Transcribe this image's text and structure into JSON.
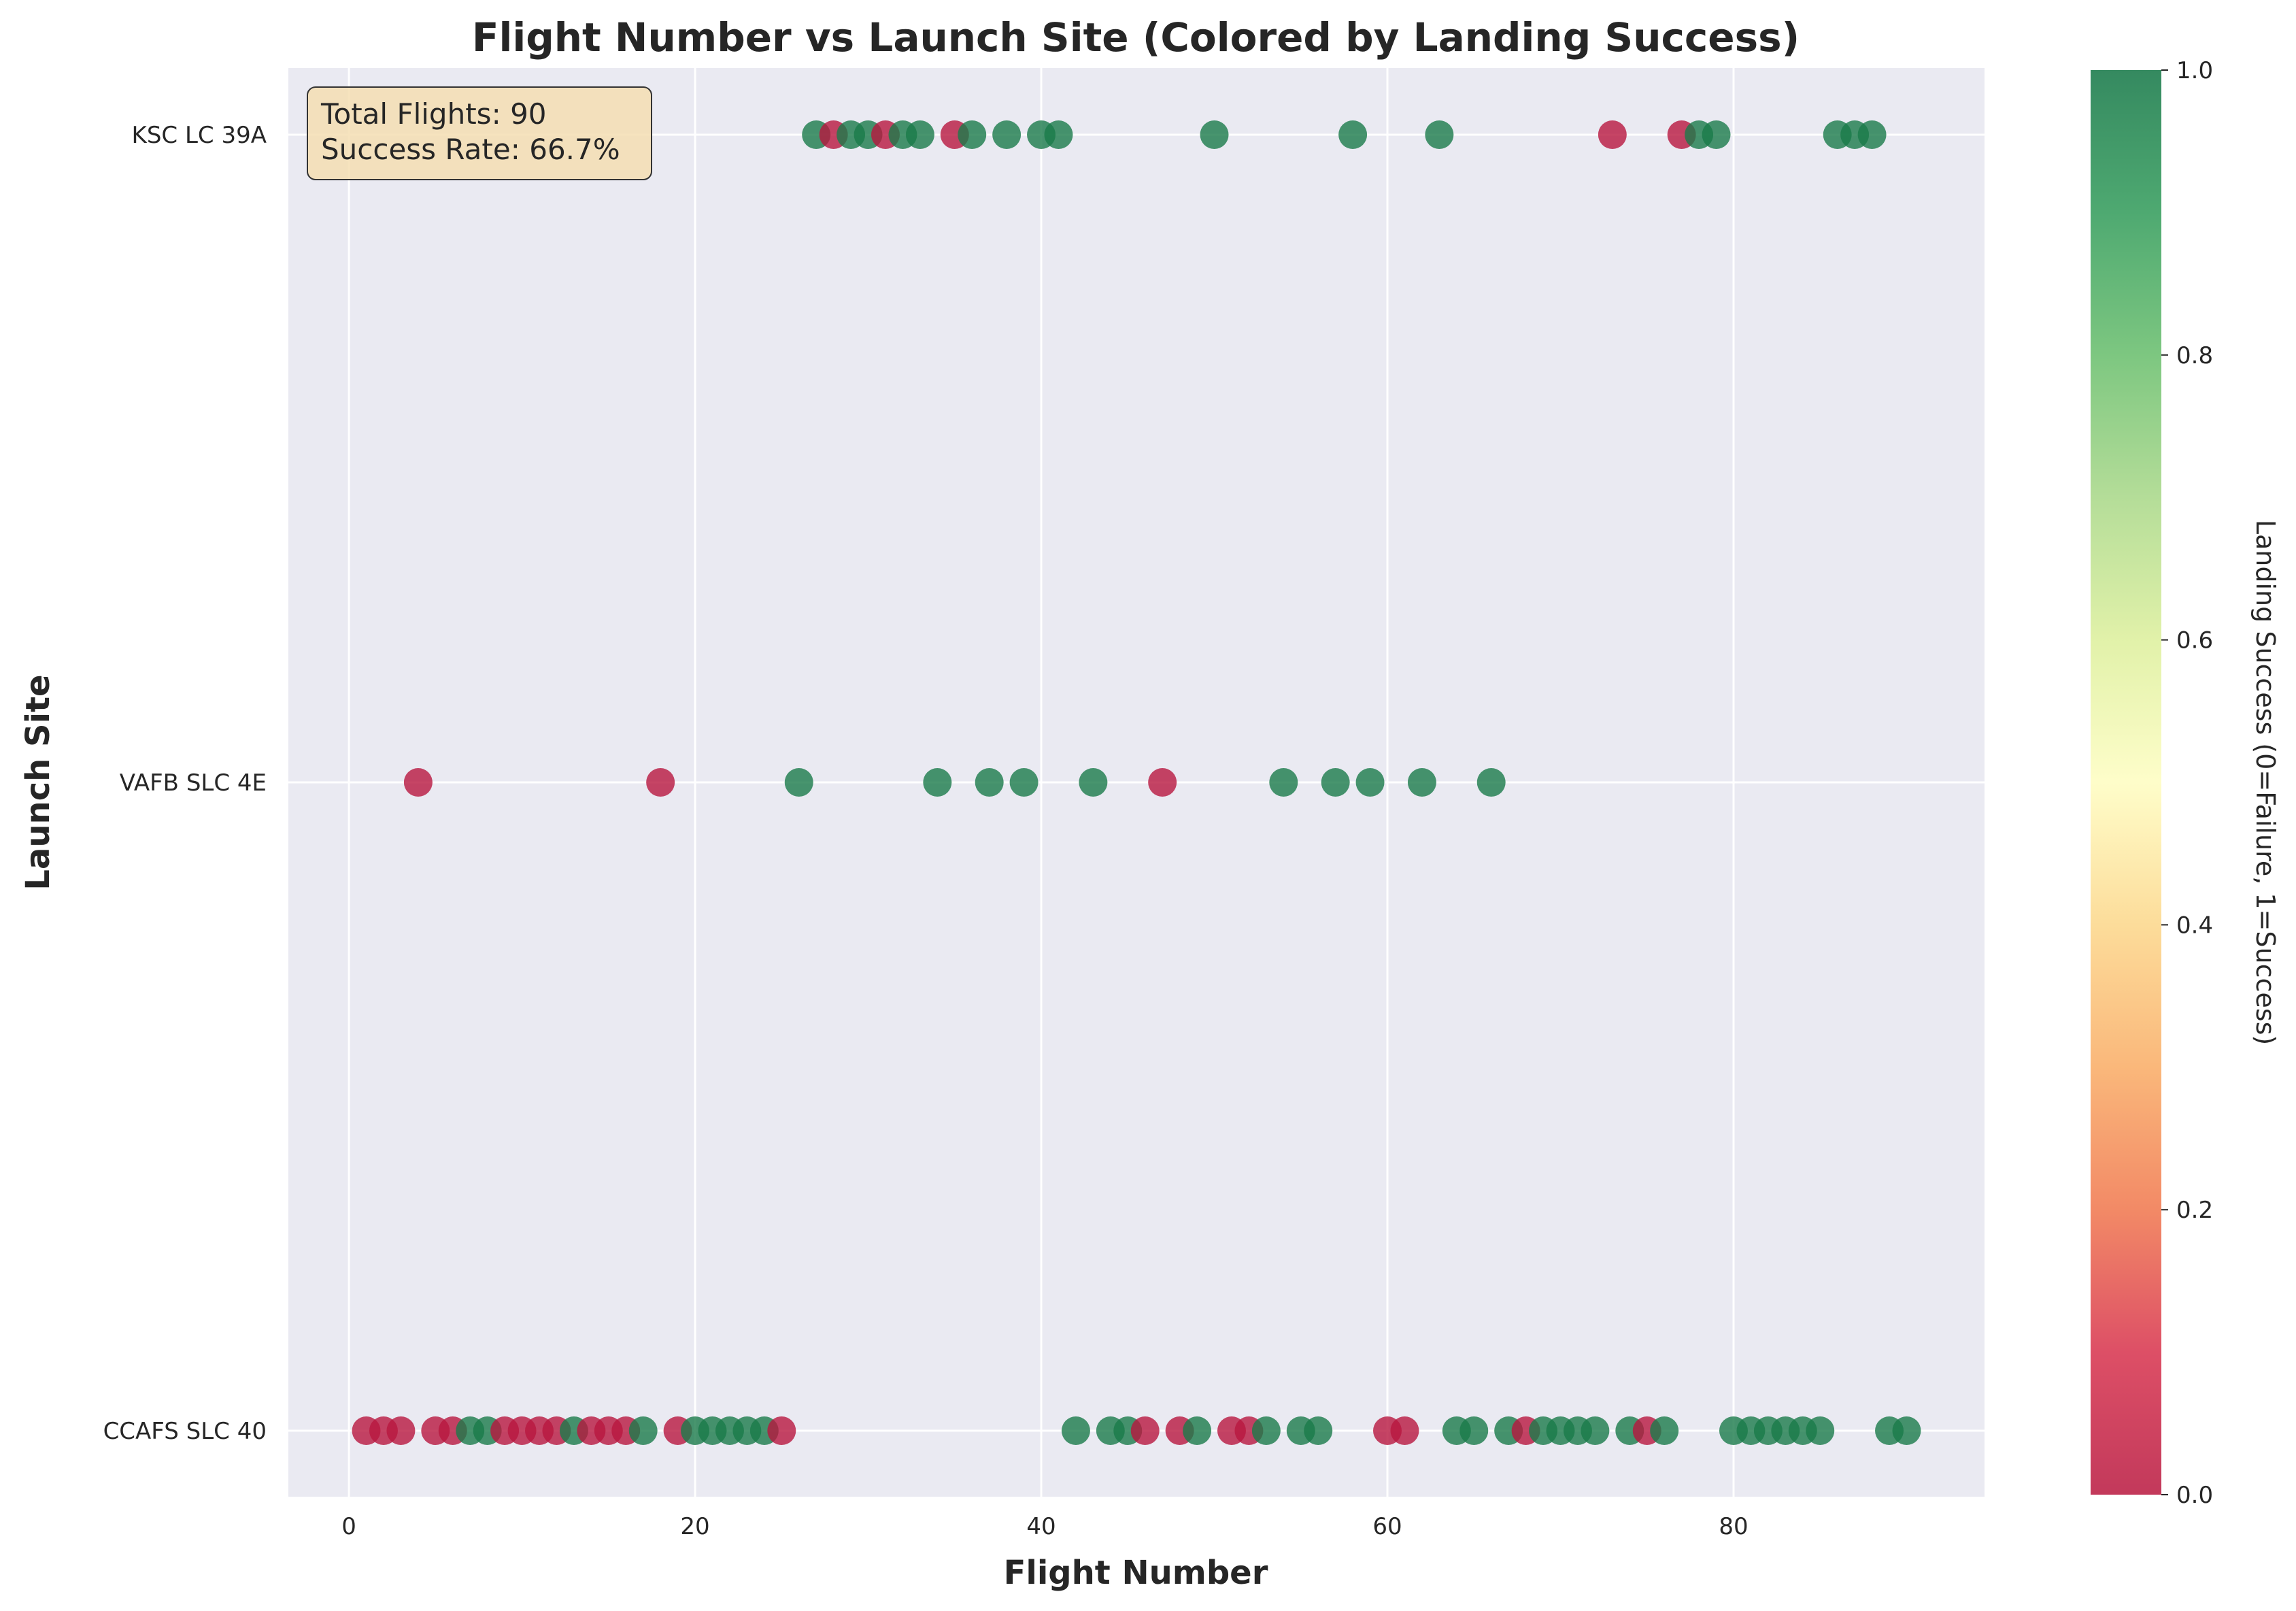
{
  "chart_data": {
    "type": "scatter",
    "title": "Flight Number vs Launch Site (Colored by Landing Success)",
    "xlabel": "Flight Number",
    "ylabel": "Launch Site",
    "xlim": [
      -3.5,
      94.5
    ],
    "x_ticks": [
      0,
      20,
      40,
      60,
      80
    ],
    "categories": [
      "CCAFS SLC 40",
      "VAFB SLC 4E",
      "KSC LC 39A"
    ],
    "grid": true,
    "colorbar": {
      "label": "Landing Success (0=Failure, 1=Success)",
      "range": [
        0,
        1
      ],
      "ticks": [
        "0.0",
        "0.2",
        "0.4",
        "0.6",
        "0.8",
        "1.0"
      ],
      "colormap": "RdYlGn"
    },
    "annotation": {
      "lines": [
        "Total Flights: 90",
        "Success Rate: 66.7%"
      ]
    },
    "colors": {
      "success": "#1a7a4a",
      "failure": "#b8163e",
      "background": "#eaeaf2"
    },
    "series": [
      {
        "site": "CCAFS SLC 40",
        "points": [
          {
            "x": 1,
            "class": 0
          },
          {
            "x": 2,
            "class": 0
          },
          {
            "x": 3,
            "class": 0
          },
          {
            "x": 5,
            "class": 0
          },
          {
            "x": 6,
            "class": 0
          },
          {
            "x": 7,
            "class": 1
          },
          {
            "x": 8,
            "class": 1
          },
          {
            "x": 9,
            "class": 0
          },
          {
            "x": 10,
            "class": 0
          },
          {
            "x": 11,
            "class": 0
          },
          {
            "x": 12,
            "class": 0
          },
          {
            "x": 13,
            "class": 1
          },
          {
            "x": 14,
            "class": 0
          },
          {
            "x": 15,
            "class": 0
          },
          {
            "x": 16,
            "class": 0
          },
          {
            "x": 17,
            "class": 1
          },
          {
            "x": 19,
            "class": 0
          },
          {
            "x": 20,
            "class": 1
          },
          {
            "x": 21,
            "class": 1
          },
          {
            "x": 22,
            "class": 1
          },
          {
            "x": 23,
            "class": 1
          },
          {
            "x": 24,
            "class": 1
          },
          {
            "x": 25,
            "class": 0
          },
          {
            "x": 42,
            "class": 1
          },
          {
            "x": 44,
            "class": 1
          },
          {
            "x": 45,
            "class": 1
          },
          {
            "x": 46,
            "class": 0
          },
          {
            "x": 48,
            "class": 0
          },
          {
            "x": 49,
            "class": 1
          },
          {
            "x": 51,
            "class": 0
          },
          {
            "x": 52,
            "class": 0
          },
          {
            "x": 53,
            "class": 1
          },
          {
            "x": 55,
            "class": 1
          },
          {
            "x": 56,
            "class": 1
          },
          {
            "x": 60,
            "class": 0
          },
          {
            "x": 61,
            "class": 0
          },
          {
            "x": 64,
            "class": 1
          },
          {
            "x": 65,
            "class": 1
          },
          {
            "x": 67,
            "class": 1
          },
          {
            "x": 68,
            "class": 0
          },
          {
            "x": 69,
            "class": 1
          },
          {
            "x": 70,
            "class": 1
          },
          {
            "x": 71,
            "class": 1
          },
          {
            "x": 72,
            "class": 1
          },
          {
            "x": 74,
            "class": 1
          },
          {
            "x": 75,
            "class": 0
          },
          {
            "x": 76,
            "class": 1
          },
          {
            "x": 80,
            "class": 1
          },
          {
            "x": 81,
            "class": 1
          },
          {
            "x": 82,
            "class": 1
          },
          {
            "x": 83,
            "class": 1
          },
          {
            "x": 84,
            "class": 1
          },
          {
            "x": 85,
            "class": 1
          },
          {
            "x": 89,
            "class": 1
          },
          {
            "x": 90,
            "class": 1
          }
        ]
      },
      {
        "site": "VAFB SLC 4E",
        "points": [
          {
            "x": 4,
            "class": 0
          },
          {
            "x": 18,
            "class": 0
          },
          {
            "x": 26,
            "class": 1
          },
          {
            "x": 34,
            "class": 1
          },
          {
            "x": 37,
            "class": 1
          },
          {
            "x": 39,
            "class": 1
          },
          {
            "x": 43,
            "class": 1
          },
          {
            "x": 47,
            "class": 0
          },
          {
            "x": 54,
            "class": 1
          },
          {
            "x": 57,
            "class": 1
          },
          {
            "x": 59,
            "class": 1
          },
          {
            "x": 62,
            "class": 1
          },
          {
            "x": 66,
            "class": 1
          }
        ]
      },
      {
        "site": "KSC LC 39A",
        "points": [
          {
            "x": 27,
            "class": 1
          },
          {
            "x": 28,
            "class": 0
          },
          {
            "x": 29,
            "class": 1
          },
          {
            "x": 30,
            "class": 1
          },
          {
            "x": 31,
            "class": 0
          },
          {
            "x": 32,
            "class": 1
          },
          {
            "x": 33,
            "class": 1
          },
          {
            "x": 35,
            "class": 0
          },
          {
            "x": 36,
            "class": 1
          },
          {
            "x": 38,
            "class": 1
          },
          {
            "x": 40,
            "class": 1
          },
          {
            "x": 41,
            "class": 1
          },
          {
            "x": 50,
            "class": 1
          },
          {
            "x": 58,
            "class": 1
          },
          {
            "x": 63,
            "class": 1
          },
          {
            "x": 73,
            "class": 0
          },
          {
            "x": 77,
            "class": 0
          },
          {
            "x": 78,
            "class": 1
          },
          {
            "x": 79,
            "class": 1
          },
          {
            "x": 86,
            "class": 1
          },
          {
            "x": 87,
            "class": 1
          },
          {
            "x": 88,
            "class": 1
          }
        ]
      }
    ]
  }
}
